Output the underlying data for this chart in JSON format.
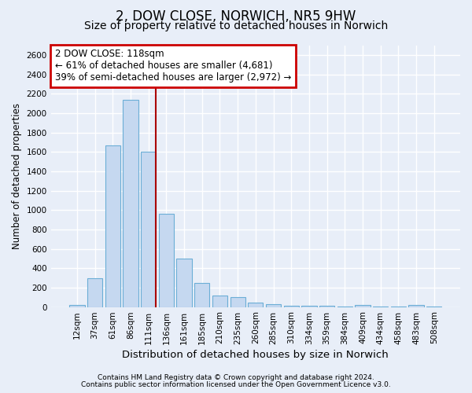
{
  "title": "2, DOW CLOSE, NORWICH, NR5 9HW",
  "subtitle": "Size of property relative to detached houses in Norwich",
  "xlabel": "Distribution of detached houses by size in Norwich",
  "ylabel": "Number of detached properties",
  "categories": [
    "12sqm",
    "37sqm",
    "61sqm",
    "86sqm",
    "111sqm",
    "136sqm",
    "161sqm",
    "185sqm",
    "210sqm",
    "235sqm",
    "260sqm",
    "285sqm",
    "310sqm",
    "334sqm",
    "359sqm",
    "384sqm",
    "409sqm",
    "434sqm",
    "458sqm",
    "483sqm",
    "508sqm"
  ],
  "values": [
    20,
    300,
    1670,
    2140,
    1600,
    960,
    500,
    245,
    120,
    100,
    45,
    30,
    15,
    12,
    10,
    8,
    20,
    5,
    5,
    20,
    5
  ],
  "bar_color": "#c5d8f0",
  "bar_edge_color": "#6baed6",
  "property_bin_index": 4,
  "property_label": "2 DOW CLOSE: 118sqm",
  "annotation_line1": "← 61% of detached houses are smaller (4,681)",
  "annotation_line2": "39% of semi-detached houses are larger (2,972) →",
  "annotation_box_edge_color": "#cc0000",
  "vline_color": "#aa0000",
  "ylim": [
    0,
    2700
  ],
  "yticks": [
    0,
    200,
    400,
    600,
    800,
    1000,
    1200,
    1400,
    1600,
    1800,
    2000,
    2200,
    2400,
    2600
  ],
  "footnote1": "Contains HM Land Registry data © Crown copyright and database right 2024.",
  "footnote2": "Contains public sector information licensed under the Open Government Licence v3.0.",
  "background_color": "#e8eef8",
  "grid_color": "#ffffff",
  "title_fontsize": 12,
  "subtitle_fontsize": 10,
  "ylabel_fontsize": 8.5,
  "xlabel_fontsize": 9.5,
  "tick_fontsize": 7.5,
  "annot_fontsize": 8.5,
  "footnote_fontsize": 6.5
}
